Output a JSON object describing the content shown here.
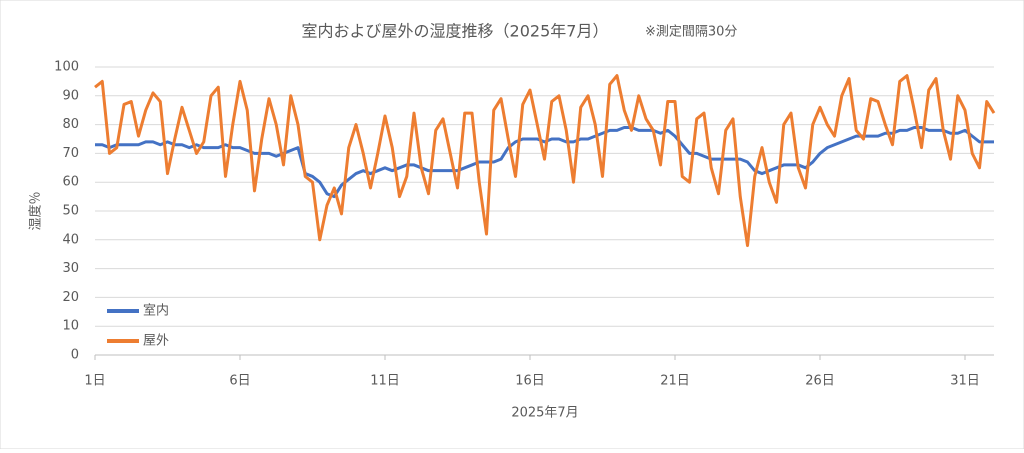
{
  "chart_data": {
    "type": "line",
    "title": "室内および屋外の湿度推移（2025年7月）",
    "subtitle": "※測定間隔30分",
    "x_label": "2025年7月",
    "y_label": "湿度％",
    "xlim": [
      1,
      32
    ],
    "xticks": [
      {
        "value": 1,
        "label": "1日"
      },
      {
        "value": 6,
        "label": "6日"
      },
      {
        "value": 11,
        "label": "11日"
      },
      {
        "value": 16,
        "label": "16日"
      },
      {
        "value": 21,
        "label": "21日"
      },
      {
        "value": 26,
        "label": "26日"
      },
      {
        "value": 31,
        "label": "31日"
      }
    ],
    "ylim": [
      0,
      100
    ],
    "yticks": [
      0,
      10,
      20,
      30,
      40,
      50,
      60,
      70,
      80,
      90,
      100
    ],
    "grid": true,
    "legend": "lower left",
    "x": [
      1,
      1.25,
      1.5,
      1.75,
      2,
      2.25,
      2.5,
      2.75,
      3,
      3.25,
      3.5,
      3.75,
      4,
      4.25,
      4.5,
      4.75,
      5,
      5.25,
      5.5,
      5.75,
      6,
      6.25,
      6.5,
      6.75,
      7,
      7.25,
      7.5,
      7.75,
      8,
      8.25,
      8.5,
      8.75,
      9,
      9.25,
      9.5,
      9.75,
      10,
      10.25,
      10.5,
      10.75,
      11,
      11.25,
      11.5,
      11.75,
      12,
      12.25,
      12.5,
      12.75,
      13,
      13.25,
      13.5,
      13.75,
      14,
      14.25,
      14.5,
      14.75,
      15,
      15.25,
      15.5,
      15.75,
      16,
      16.25,
      16.5,
      16.75,
      17,
      17.25,
      17.5,
      17.75,
      18,
      18.25,
      18.5,
      18.75,
      19,
      19.25,
      19.5,
      19.75,
      20,
      20.25,
      20.5,
      20.75,
      21,
      21.25,
      21.5,
      21.75,
      22,
      22.25,
      22.5,
      22.75,
      23,
      23.25,
      23.5,
      23.75,
      24,
      24.25,
      24.5,
      24.75,
      25,
      25.25,
      25.5,
      25.75,
      26,
      26.25,
      26.5,
      26.75,
      27,
      27.25,
      27.5,
      27.75,
      28,
      28.25,
      28.5,
      28.75,
      29,
      29.25,
      29.5,
      29.75,
      30,
      30.25,
      30.5,
      30.75,
      31,
      31.25,
      31.5,
      31.75,
      32
    ],
    "series": [
      {
        "name": "室内",
        "color": "#4472c4",
        "values": [
          73,
          73,
          72,
          73,
          73,
          73,
          73,
          74,
          74,
          73,
          74,
          73,
          73,
          72,
          73,
          72,
          72,
          72,
          73,
          72,
          72,
          71,
          70,
          70,
          70,
          69,
          70,
          71,
          72,
          63,
          62,
          60,
          56,
          55,
          59,
          61,
          63,
          64,
          63,
          64,
          65,
          64,
          65,
          66,
          66,
          65,
          64,
          64,
          64,
          64,
          64,
          65,
          66,
          67,
          67,
          67,
          68,
          72,
          74,
          75,
          75,
          75,
          74,
          75,
          75,
          74,
          74,
          75,
          75,
          76,
          77,
          78,
          78,
          79,
          79,
          78,
          78,
          78,
          77,
          78,
          76,
          73,
          70,
          70,
          69,
          68,
          68,
          68,
          68,
          68,
          67,
          64,
          63,
          64,
          65,
          66,
          66,
          66,
          65,
          67,
          70,
          72,
          73,
          74,
          75,
          76,
          76,
          76,
          76,
          77,
          77,
          78,
          78,
          79,
          79,
          78,
          78,
          78,
          77,
          77,
          78,
          76,
          74,
          74,
          74
        ]
      },
      {
        "name": "屋外",
        "color": "#ed7d31",
        "values": [
          93,
          95,
          70,
          72,
          87,
          88,
          76,
          85,
          91,
          88,
          63,
          75,
          86,
          78,
          70,
          74,
          90,
          93,
          62,
          80,
          95,
          85,
          57,
          75,
          89,
          80,
          66,
          90,
          80,
          62,
          60,
          40,
          52,
          58,
          49,
          72,
          80,
          70,
          58,
          70,
          83,
          72,
          55,
          62,
          84,
          65,
          56,
          78,
          82,
          70,
          58,
          84,
          84,
          60,
          42,
          85,
          89,
          75,
          62,
          87,
          92,
          80,
          68,
          88,
          90,
          78,
          60,
          86,
          90,
          80,
          62,
          94,
          97,
          85,
          78,
          90,
          82,
          78,
          66,
          88,
          88,
          62,
          60,
          82,
          84,
          65,
          56,
          78,
          82,
          55,
          38,
          62,
          72,
          60,
          53,
          80,
          84,
          65,
          58,
          80,
          86,
          80,
          76,
          90,
          96,
          78,
          75,
          89,
          88,
          80,
          73,
          95,
          97,
          85,
          72,
          92,
          96,
          78,
          68,
          90,
          85,
          70,
          65,
          88,
          84
        ]
      }
    ]
  }
}
